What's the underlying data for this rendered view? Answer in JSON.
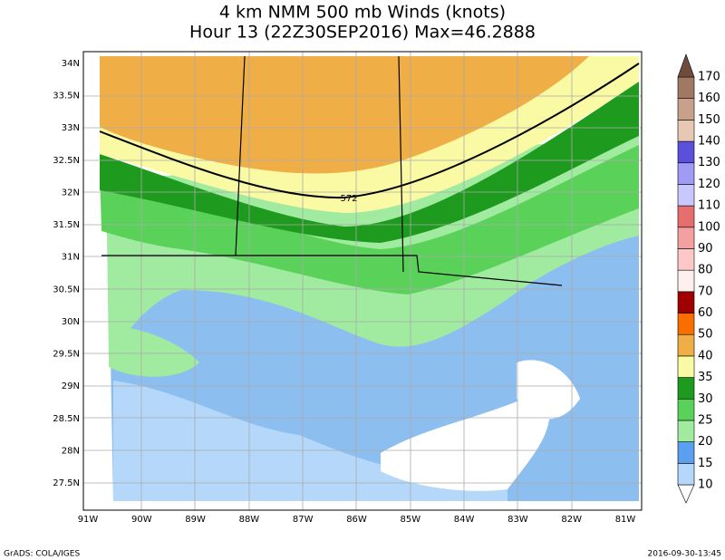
{
  "title": [
    "4 km NMM 500 mb Winds (knots)",
    "Hour 13 (22Z30SEP2016) Max=46.2888"
  ],
  "lat_labels": [
    "34N",
    "33.5N",
    "33N",
    "32.5N",
    "32N",
    "31.5N",
    "31N",
    "30.5N",
    "30N",
    "29.5N",
    "29N",
    "28.5N",
    "28N",
    "27.5N"
  ],
  "lon_labels": [
    "91W",
    "90W",
    "89W",
    "88W",
    "87W",
    "86W",
    "85W",
    "84W",
    "83W",
    "82W",
    "81W"
  ],
  "contour_label": "572",
  "colorbar": {
    "levels": [
      10,
      15,
      20,
      25,
      30,
      35,
      40,
      50,
      60,
      70,
      80,
      90,
      100,
      110,
      120,
      130,
      140,
      150,
      160,
      170
    ],
    "colors": [
      "#ffffff",
      "#b4d7fa",
      "#5a9ff0",
      "#a0eba0",
      "#5ad25a",
      "#1e9b1e",
      "#fafaa5",
      "#f0af46",
      "#fa6e00",
      "#a00000",
      "#fff0f0",
      "#ffc8c8",
      "#f5a0a0",
      "#e66e6e",
      "#c8c8ff",
      "#a09bf5",
      "#5a50dc",
      "#e6c8b4",
      "#c8a08c",
      "#a07864",
      "#6e4b3c"
    ]
  },
  "footer": {
    "left": "GrADS: COLA/IGES",
    "right": "2016-09-30-13:45"
  }
}
